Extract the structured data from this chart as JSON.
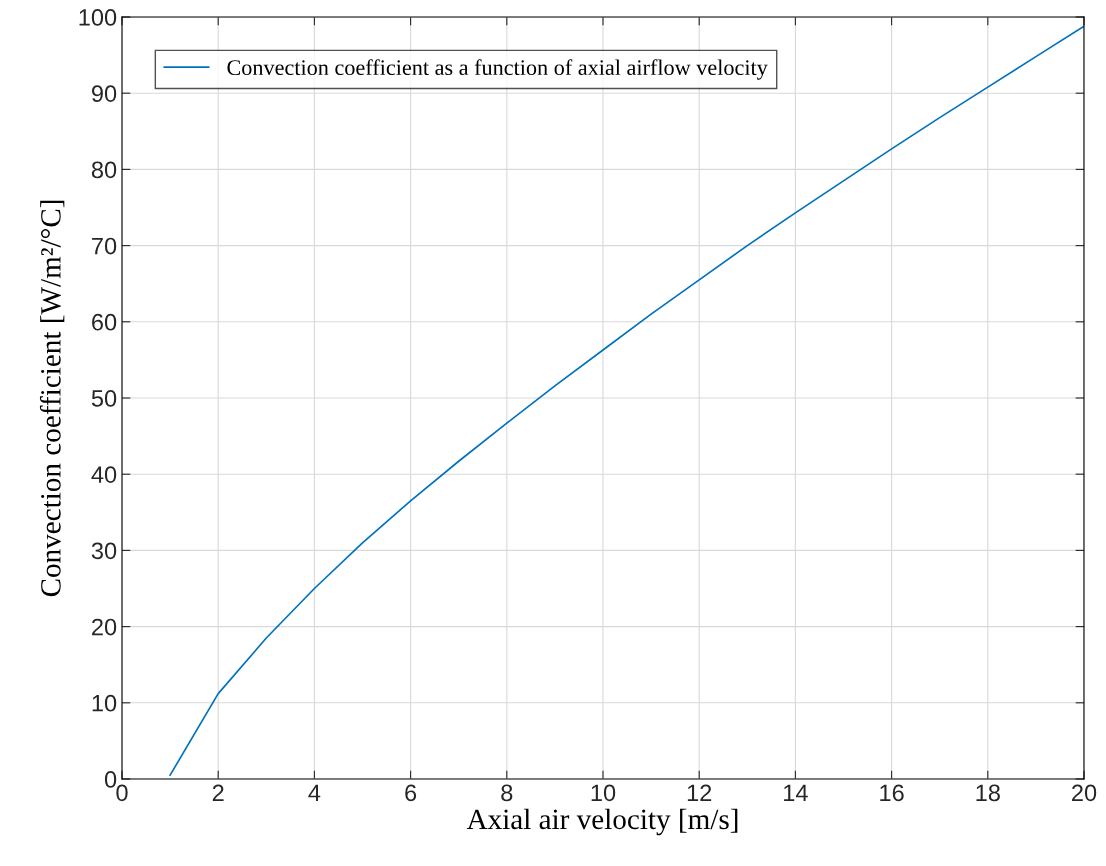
{
  "chart_data": {
    "type": "line",
    "xlabel": "Axial air velocity [m/s]",
    "ylabel": "Convection coefficient [W/m²/°C]",
    "x": [
      1,
      2,
      3,
      4,
      5,
      6,
      7,
      8,
      9,
      10,
      11,
      12,
      13,
      14,
      15,
      16,
      17,
      18,
      19,
      20
    ],
    "series": [
      {
        "name": "Convection coefficient as a function of axial airflow velocity",
        "color": "#0072bd",
        "values": [
          0.5,
          11.2,
          18.5,
          25,
          31,
          36.5,
          41.7,
          46.7,
          51.6,
          56.3,
          61,
          65.5,
          70,
          74.3,
          78.5,
          82.7,
          86.8,
          90.8,
          94.8,
          98.8
        ]
      }
    ],
    "xlim": [
      0,
      20
    ],
    "xticks": [
      0,
      2,
      4,
      6,
      8,
      10,
      12,
      14,
      16,
      18,
      20
    ],
    "ylim": [
      0,
      100
    ],
    "yticks": [
      0,
      10,
      20,
      30,
      40,
      50,
      60,
      70,
      80,
      90,
      100
    ],
    "grid": true,
    "legend": "top left",
    "marker": "none",
    "line_style": "solid"
  }
}
